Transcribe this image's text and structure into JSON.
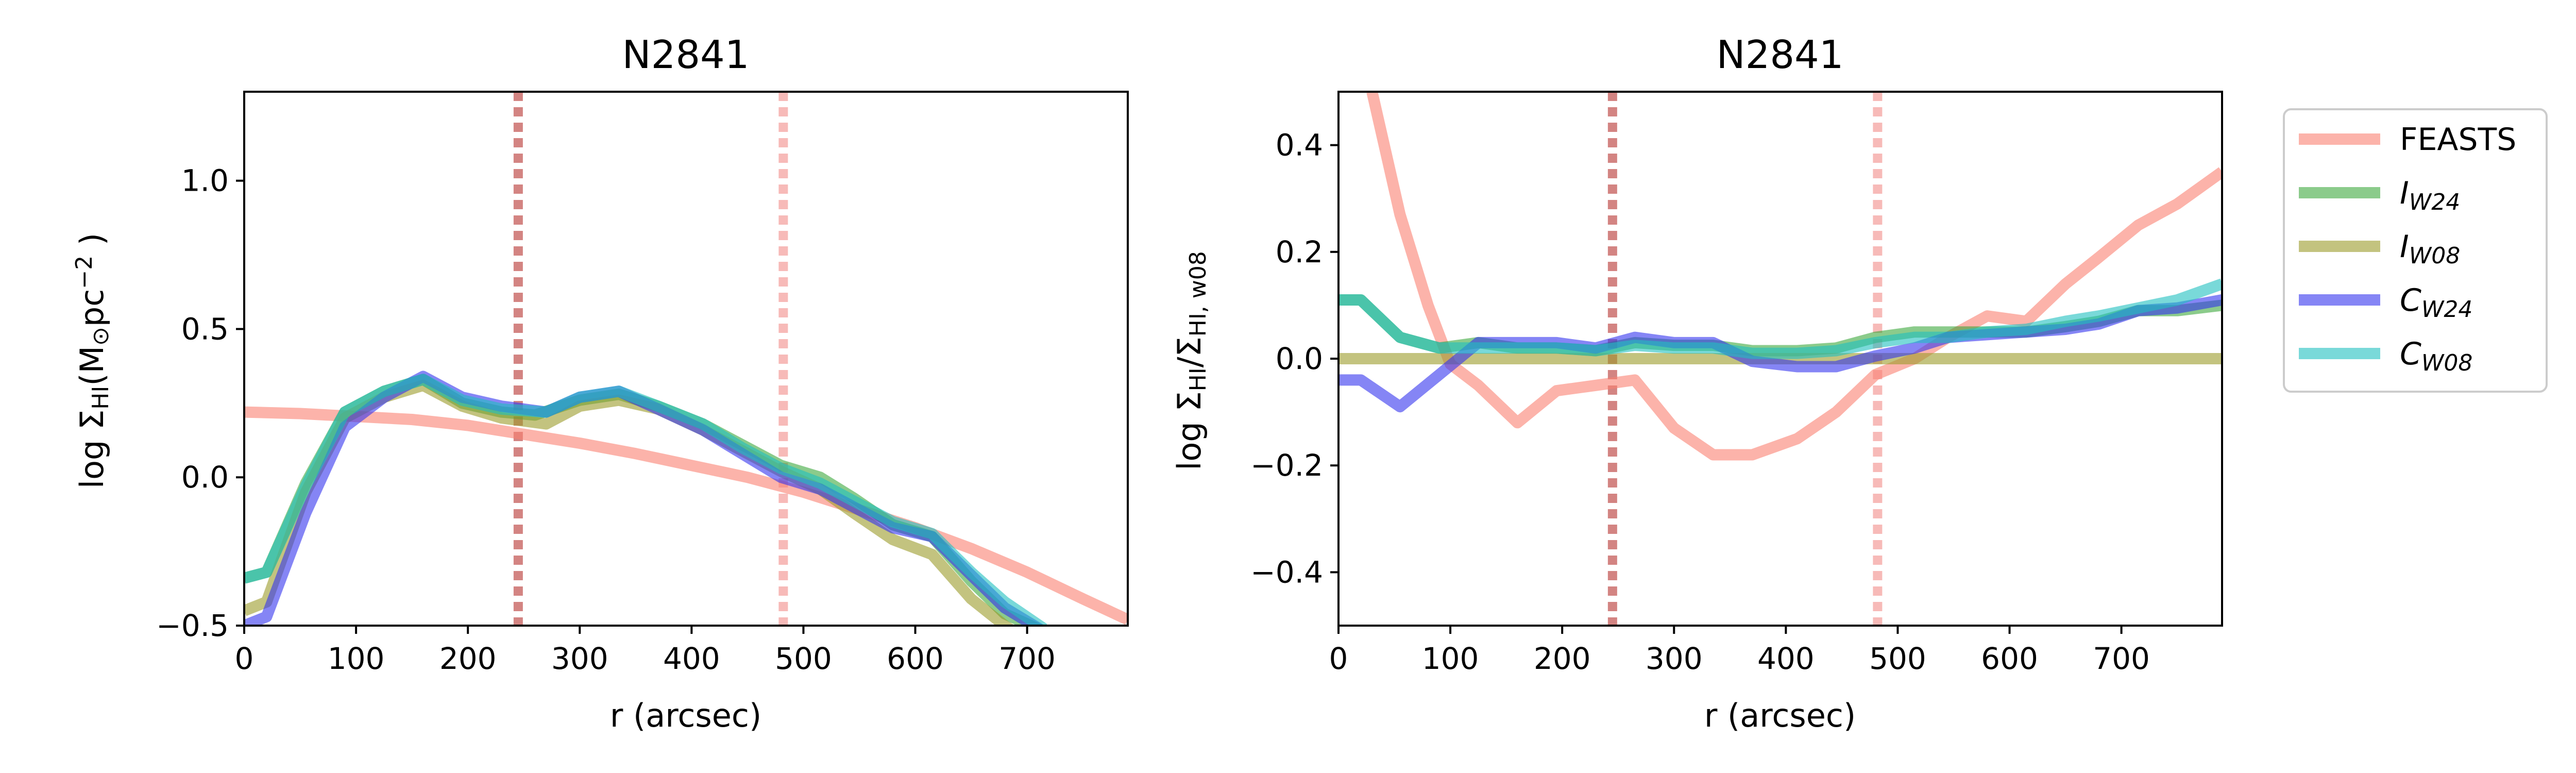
{
  "chart_data": [
    {
      "type": "line",
      "title": "N2841",
      "xlabel": "r (arcsec)",
      "ylabel": "log Σ_HI(M_⊙pc^-2 )",
      "ylabel_parts": {
        "pre": "log Σ",
        "sub": "HI",
        "mid": "(M",
        "sub2": "⊙",
        "mid2": "pc",
        "sup": "−2",
        "post": " )"
      },
      "xlim": [
        0,
        790
      ],
      "ylim": [
        -0.5,
        1.3
      ],
      "xticks": [
        0,
        100,
        200,
        300,
        400,
        500,
        600,
        700
      ],
      "xtick_labels": [
        "0",
        "100",
        "200",
        "300",
        "400",
        "500",
        "600",
        "700"
      ],
      "yticks": [
        -0.5,
        0.0,
        0.5,
        1.0
      ],
      "ytick_labels": [
        "−0.5",
        "0.0",
        "0.5",
        "1.0"
      ],
      "vlines": [
        {
          "x": 245,
          "color": "#c0504d",
          "opacity": 0.7
        },
        {
          "x": 482,
          "color": "#f4a3a0",
          "opacity": 0.75
        }
      ],
      "series": [
        {
          "name": "FEASTS",
          "color": "#fa8072",
          "opacity": 0.6,
          "x": [
            0,
            50,
            100,
            150,
            200,
            250,
            300,
            350,
            400,
            450,
            500,
            550,
            600,
            650,
            700,
            750,
            790
          ],
          "y": [
            0.22,
            0.215,
            0.205,
            0.195,
            0.175,
            0.145,
            0.115,
            0.08,
            0.04,
            0.0,
            -0.05,
            -0.11,
            -0.17,
            -0.24,
            -0.32,
            -0.41,
            -0.48
          ]
        },
        {
          "name": "I_W24",
          "color": "#2ca02c",
          "opacity": 0.55,
          "x": [
            0,
            20,
            55,
            90,
            125,
            160,
            195,
            230,
            260,
            300,
            335,
            370,
            410,
            445,
            480,
            515,
            545,
            580,
            615,
            650,
            680,
            715
          ],
          "y": [
            -0.34,
            -0.32,
            -0.02,
            0.22,
            0.29,
            0.33,
            0.25,
            0.22,
            0.21,
            0.26,
            0.28,
            0.24,
            0.18,
            0.11,
            0.04,
            0.0,
            -0.07,
            -0.16,
            -0.2,
            -0.35,
            -0.46,
            -0.52
          ]
        },
        {
          "name": "I_W08",
          "color": "#9b9b2a",
          "opacity": 0.6,
          "x": [
            0,
            20,
            55,
            90,
            125,
            160,
            195,
            230,
            270,
            300,
            335,
            370,
            410,
            445,
            480,
            515,
            545,
            580,
            615,
            650,
            680,
            700
          ],
          "y": [
            -0.45,
            -0.42,
            -0.05,
            0.2,
            0.27,
            0.31,
            0.24,
            0.2,
            0.18,
            0.24,
            0.26,
            0.23,
            0.16,
            0.09,
            0.02,
            -0.04,
            -0.12,
            -0.21,
            -0.26,
            -0.41,
            -0.5,
            -0.55
          ]
        },
        {
          "name": "C_W24",
          "color": "#3333ee",
          "opacity": 0.6,
          "x": [
            0,
            20,
            55,
            90,
            125,
            160,
            195,
            230,
            270,
            300,
            335,
            370,
            410,
            445,
            480,
            515,
            545,
            580,
            615,
            650,
            680,
            715
          ],
          "y": [
            -0.5,
            -0.47,
            -0.12,
            0.17,
            0.27,
            0.34,
            0.27,
            0.24,
            0.22,
            0.27,
            0.29,
            0.23,
            0.16,
            0.08,
            0.0,
            -0.04,
            -0.1,
            -0.17,
            -0.2,
            -0.33,
            -0.44,
            -0.52
          ]
        },
        {
          "name": "C_W08",
          "color": "#20c0c0",
          "opacity": 0.6,
          "x": [
            0,
            20,
            55,
            90,
            125,
            160,
            195,
            230,
            270,
            300,
            335,
            370,
            410,
            445,
            480,
            515,
            545,
            580,
            615,
            650,
            680,
            715
          ],
          "y": [
            -0.34,
            -0.32,
            -0.03,
            0.22,
            0.29,
            0.33,
            0.26,
            0.23,
            0.22,
            0.27,
            0.29,
            0.24,
            0.18,
            0.1,
            0.03,
            -0.02,
            -0.08,
            -0.15,
            -0.19,
            -0.32,
            -0.42,
            -0.51
          ]
        }
      ]
    },
    {
      "type": "line",
      "title": "N2841",
      "xlabel": "r (arcsec)",
      "ylabel": "log Σ_HI/Σ_HI, w08",
      "ylabel_parts": {
        "pre": "log Σ",
        "sub": "HI",
        "mid": "/Σ",
        "sub2": "HI, w08"
      },
      "xlim": [
        0,
        790
      ],
      "ylim": [
        -0.5,
        0.5
      ],
      "xticks": [
        0,
        100,
        200,
        300,
        400,
        500,
        600,
        700
      ],
      "xtick_labels": [
        "0",
        "100",
        "200",
        "300",
        "400",
        "500",
        "600",
        "700"
      ],
      "yticks": [
        -0.4,
        -0.2,
        0.0,
        0.2,
        0.4
      ],
      "ytick_labels": [
        "−0.4",
        "−0.2",
        "0.0",
        "0.2",
        "0.4"
      ],
      "vlines": [
        {
          "x": 245,
          "color": "#c0504d",
          "opacity": 0.7
        },
        {
          "x": 482,
          "color": "#f4a3a0",
          "opacity": 0.75
        }
      ],
      "series": [
        {
          "name": "FEASTS",
          "color": "#fa8072",
          "opacity": 0.6,
          "x": [
            30,
            55,
            80,
            100,
            125,
            160,
            195,
            230,
            265,
            300,
            335,
            370,
            410,
            445,
            480,
            515,
            545,
            580,
            615,
            650,
            680,
            715,
            750,
            790
          ],
          "y": [
            0.5,
            0.27,
            0.1,
            -0.01,
            -0.05,
            -0.12,
            -0.06,
            -0.05,
            -0.04,
            -0.13,
            -0.18,
            -0.18,
            -0.15,
            -0.1,
            -0.03,
            0.0,
            0.04,
            0.08,
            0.07,
            0.14,
            0.19,
            0.25,
            0.29,
            0.35
          ]
        },
        {
          "name": "I_W24",
          "color": "#2ca02c",
          "opacity": 0.55,
          "x": [
            0,
            20,
            55,
            90,
            125,
            160,
            195,
            230,
            265,
            300,
            335,
            370,
            410,
            445,
            480,
            515,
            545,
            580,
            615,
            650,
            680,
            715,
            750,
            790
          ],
          "y": [
            0.11,
            0.11,
            0.04,
            0.02,
            0.03,
            0.02,
            0.02,
            0.015,
            0.03,
            0.025,
            0.025,
            0.015,
            0.015,
            0.02,
            0.04,
            0.05,
            0.05,
            0.05,
            0.05,
            0.06,
            0.07,
            0.09,
            0.09,
            0.1
          ]
        },
        {
          "name": "I_W08",
          "color": "#9b9b2a",
          "opacity": 0.6,
          "x": [
            0,
            790
          ],
          "y": [
            0.0,
            0.0
          ]
        },
        {
          "name": "C_W24",
          "color": "#3333ee",
          "opacity": 0.6,
          "x": [
            0,
            20,
            55,
            90,
            125,
            160,
            195,
            230,
            265,
            300,
            335,
            370,
            410,
            445,
            480,
            515,
            545,
            580,
            615,
            650,
            680,
            715,
            750,
            790
          ],
          "y": [
            -0.04,
            -0.04,
            -0.09,
            -0.03,
            0.03,
            0.03,
            0.03,
            0.02,
            0.04,
            0.03,
            0.03,
            -0.005,
            -0.015,
            -0.015,
            0.005,
            0.02,
            0.04,
            0.045,
            0.05,
            0.055,
            0.065,
            0.09,
            0.095,
            0.11
          ]
        },
        {
          "name": "C_W08",
          "color": "#20c0c0",
          "opacity": 0.6,
          "x": [
            0,
            20,
            55,
            90,
            125,
            160,
            195,
            230,
            265,
            300,
            335,
            370,
            410,
            445,
            480,
            515,
            545,
            580,
            615,
            650,
            680,
            715,
            750,
            790
          ],
          "y": [
            0.11,
            0.11,
            0.04,
            0.02,
            0.02,
            0.02,
            0.02,
            0.015,
            0.025,
            0.02,
            0.02,
            0.01,
            0.01,
            0.015,
            0.03,
            0.04,
            0.04,
            0.05,
            0.055,
            0.07,
            0.08,
            0.095,
            0.11,
            0.14
          ]
        }
      ]
    }
  ],
  "legend": {
    "placement": "outside-right",
    "entries": [
      {
        "label": "FEASTS",
        "italic": false,
        "main": "FEASTS",
        "sub": "",
        "color": "#fa8072",
        "opacity": 0.6
      },
      {
        "label": "I_W24",
        "italic": true,
        "main": "I",
        "sub": "W24",
        "color": "#2ca02c",
        "opacity": 0.55
      },
      {
        "label": "I_W08",
        "italic": true,
        "main": "I",
        "sub": "W08",
        "color": "#9b9b2a",
        "opacity": 0.6
      },
      {
        "label": "C_W24",
        "italic": true,
        "main": "C",
        "sub": "W24",
        "color": "#3333ee",
        "opacity": 0.6
      },
      {
        "label": "C_W08",
        "italic": true,
        "main": "C",
        "sub": "W08",
        "color": "#20c0c0",
        "opacity": 0.6
      }
    ]
  }
}
